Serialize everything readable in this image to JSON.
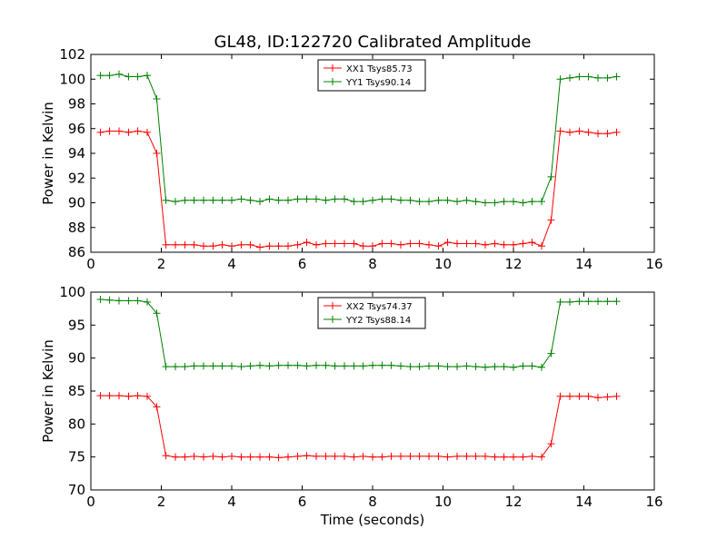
{
  "figure": {
    "title": "GL48, ID:122720 Calibrated Amplitude",
    "background": "#ffffff"
  },
  "chart_data": [
    {
      "type": "line",
      "title": "GL48, ID:122720 Calibrated Amplitude",
      "xlabel": "",
      "ylabel": "Power in Kelvin",
      "xlim": [
        0,
        16
      ],
      "ylim": [
        86,
        102
      ],
      "xticks": [
        0,
        2,
        4,
        6,
        8,
        10,
        12,
        14,
        16
      ],
      "yticks": [
        86,
        88,
        90,
        92,
        94,
        96,
        98,
        100,
        102
      ],
      "grid": false,
      "legend_position": "top-center",
      "x": [
        0.27,
        0.53,
        0.8,
        1.07,
        1.33,
        1.6,
        1.87,
        2.13,
        2.4,
        2.67,
        2.93,
        3.2,
        3.47,
        3.73,
        4.0,
        4.27,
        4.53,
        4.8,
        5.07,
        5.33,
        5.6,
        5.87,
        6.13,
        6.4,
        6.67,
        6.93,
        7.2,
        7.47,
        7.73,
        8.0,
        8.27,
        8.53,
        8.8,
        9.07,
        9.33,
        9.6,
        9.87,
        10.13,
        10.4,
        10.67,
        10.93,
        11.2,
        11.47,
        11.73,
        12.0,
        12.27,
        12.53,
        12.8,
        13.07,
        13.33,
        13.6,
        13.87,
        14.13,
        14.4,
        14.67,
        14.93
      ],
      "series": [
        {
          "name": "XX1 Tsys85.73",
          "color": "#ff0000",
          "values": [
            95.7,
            95.8,
            95.8,
            95.7,
            95.8,
            95.7,
            94.0,
            86.6,
            86.6,
            86.6,
            86.6,
            86.5,
            86.5,
            86.6,
            86.5,
            86.6,
            86.6,
            86.4,
            86.5,
            86.5,
            86.5,
            86.6,
            86.8,
            86.6,
            86.7,
            86.7,
            86.7,
            86.7,
            86.5,
            86.5,
            86.7,
            86.7,
            86.6,
            86.7,
            86.7,
            86.6,
            86.5,
            86.8,
            86.7,
            86.7,
            86.7,
            86.6,
            86.7,
            86.6,
            86.6,
            86.7,
            86.8,
            86.5,
            88.6,
            95.8,
            95.7,
            95.8,
            95.7,
            95.6,
            95.6,
            95.7
          ]
        },
        {
          "name": "YY1 Tsys90.14",
          "color": "#008000",
          "values": [
            100.3,
            100.3,
            100.4,
            100.2,
            100.2,
            100.3,
            98.4,
            90.2,
            90.1,
            90.2,
            90.2,
            90.2,
            90.2,
            90.2,
            90.2,
            90.3,
            90.2,
            90.1,
            90.3,
            90.2,
            90.2,
            90.3,
            90.3,
            90.3,
            90.2,
            90.3,
            90.3,
            90.1,
            90.1,
            90.2,
            90.3,
            90.3,
            90.2,
            90.2,
            90.1,
            90.1,
            90.2,
            90.2,
            90.1,
            90.2,
            90.1,
            90.0,
            90.0,
            90.1,
            90.1,
            90.0,
            90.1,
            90.1,
            92.1,
            100.0,
            100.1,
            100.2,
            100.2,
            100.1,
            100.1,
            100.2
          ]
        }
      ]
    },
    {
      "type": "line",
      "title": "",
      "xlabel": "Time (seconds)",
      "ylabel": "Power in Kelvin",
      "xlim": [
        0,
        16
      ],
      "ylim": [
        70,
        100
      ],
      "xticks": [
        0,
        2,
        4,
        6,
        8,
        10,
        12,
        14,
        16
      ],
      "yticks": [
        70,
        75,
        80,
        85,
        90,
        95,
        100
      ],
      "grid": false,
      "legend_position": "top-center",
      "x": [
        0.27,
        0.53,
        0.8,
        1.07,
        1.33,
        1.6,
        1.87,
        2.13,
        2.4,
        2.67,
        2.93,
        3.2,
        3.47,
        3.73,
        4.0,
        4.27,
        4.53,
        4.8,
        5.07,
        5.33,
        5.6,
        5.87,
        6.13,
        6.4,
        6.67,
        6.93,
        7.2,
        7.47,
        7.73,
        8.0,
        8.27,
        8.53,
        8.8,
        9.07,
        9.33,
        9.6,
        9.87,
        10.13,
        10.4,
        10.67,
        10.93,
        11.2,
        11.47,
        11.73,
        12.0,
        12.27,
        12.53,
        12.8,
        13.07,
        13.33,
        13.6,
        13.87,
        14.13,
        14.4,
        14.67,
        14.93
      ],
      "series": [
        {
          "name": "XX2 Tsys74.37",
          "color": "#ff0000",
          "values": [
            84.3,
            84.3,
            84.3,
            84.2,
            84.3,
            84.2,
            82.6,
            75.2,
            75.0,
            75.0,
            75.1,
            75.0,
            75.1,
            75.0,
            75.1,
            75.0,
            75.0,
            75.0,
            75.0,
            74.9,
            75.0,
            75.1,
            75.2,
            75.1,
            75.1,
            75.1,
            75.1,
            75.0,
            75.1,
            75.0,
            75.0,
            75.1,
            75.1,
            75.1,
            75.1,
            75.1,
            75.1,
            75.0,
            75.1,
            75.1,
            75.1,
            75.1,
            75.0,
            75.0,
            75.0,
            75.0,
            75.1,
            75.0,
            77.0,
            84.2,
            84.2,
            84.2,
            84.2,
            84.0,
            84.1,
            84.2
          ]
        },
        {
          "name": "YY2 Tsys88.14",
          "color": "#008000",
          "values": [
            98.9,
            98.8,
            98.7,
            98.7,
            98.7,
            98.5,
            96.8,
            88.7,
            88.7,
            88.7,
            88.8,
            88.8,
            88.8,
            88.8,
            88.8,
            88.7,
            88.8,
            88.9,
            88.8,
            88.9,
            88.9,
            88.9,
            88.8,
            88.9,
            88.9,
            88.8,
            88.8,
            88.8,
            88.8,
            88.9,
            88.9,
            88.9,
            88.8,
            88.7,
            88.7,
            88.8,
            88.8,
            88.7,
            88.7,
            88.8,
            88.7,
            88.6,
            88.7,
            88.7,
            88.6,
            88.8,
            88.8,
            88.6,
            90.7,
            98.5,
            98.5,
            98.6,
            98.6,
            98.6,
            98.6,
            98.6
          ]
        }
      ]
    }
  ]
}
